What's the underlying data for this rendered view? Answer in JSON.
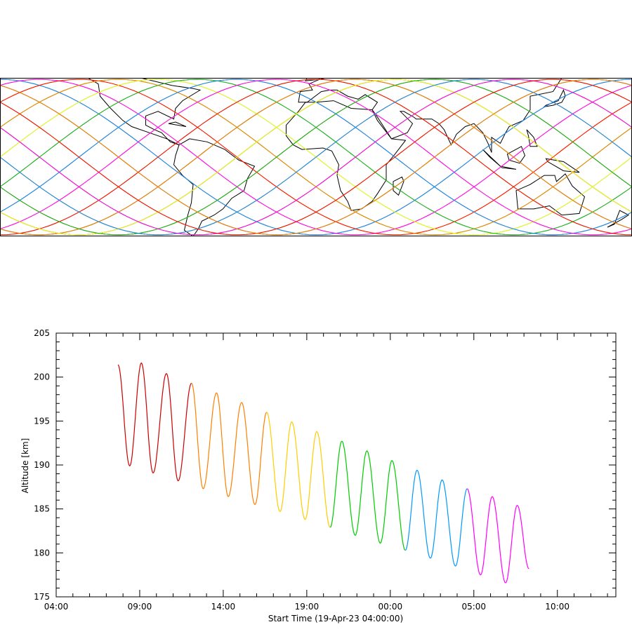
{
  "map": {
    "lat_extent": [
      -52,
      52
    ],
    "lon_extent": [
      -180,
      180
    ],
    "track_colors": [
      "#ff0000",
      "#ff7f00",
      "#ffff00",
      "#00cc00",
      "#0099ff",
      "#ff00ff"
    ]
  },
  "chart_data": {
    "type": "line",
    "xlabel": "Start Time (19-Apr-23 04:00:00)",
    "ylabel": "Altitude [km]",
    "x_unit": "hours since 19-Apr-23 04:00:00",
    "xlim": [
      0,
      33.5
    ],
    "ylim": [
      175,
      205
    ],
    "x_ticks": [
      {
        "value": 0,
        "label": "04:00"
      },
      {
        "value": 5,
        "label": "09:00"
      },
      {
        "value": 10,
        "label": "14:00"
      },
      {
        "value": 15,
        "label": "19:00"
      },
      {
        "value": 20,
        "label": "00:00"
      },
      {
        "value": 25,
        "label": "05:00"
      },
      {
        "value": 30,
        "label": "10:00"
      }
    ],
    "y_ticks": [
      175,
      180,
      185,
      190,
      195,
      200,
      205
    ],
    "grid": false,
    "series": [
      {
        "color": "#cc0000",
        "peaks": [
          [
            5.1,
            201.6
          ],
          [
            6.6,
            200.4
          ]
        ],
        "troughs": [
          [
            4.4,
            189.9
          ],
          [
            5.8,
            189.1
          ],
          [
            7.3,
            188.2
          ]
        ]
      },
      {
        "color": "#ff7f00",
        "peaks": [
          [
            8.1,
            199.3
          ],
          [
            9.6,
            198.2
          ],
          [
            11.1,
            197.1
          ]
        ],
        "troughs": [
          [
            8.8,
            187.3
          ],
          [
            10.3,
            186.4
          ],
          [
            11.9,
            185.5
          ]
        ]
      },
      {
        "color": "#ffcc00",
        "peaks": [
          [
            12.6,
            196.0
          ],
          [
            14.1,
            194.9
          ],
          [
            15.6,
            193.8
          ]
        ],
        "troughs": [
          [
            13.4,
            184.7
          ],
          [
            14.9,
            183.8
          ]
        ]
      },
      {
        "color": "#00cc00",
        "peaks": [
          [
            17.1,
            192.7
          ],
          [
            18.6,
            191.6
          ],
          [
            20.1,
            190.5
          ]
        ],
        "troughs": [
          [
            16.4,
            182.9
          ],
          [
            17.9,
            182.0
          ],
          [
            19.4,
            181.1
          ]
        ]
      },
      {
        "color": "#0099ff",
        "peaks": [
          [
            21.6,
            189.4
          ],
          [
            23.1,
            188.3
          ]
        ],
        "troughs": [
          [
            20.9,
            180.3
          ],
          [
            22.4,
            179.4
          ],
          [
            23.9,
            178.5
          ]
        ]
      },
      {
        "color": "#ff00ff",
        "peaks": [
          [
            24.6,
            187.3
          ],
          [
            26.1,
            186.4
          ],
          [
            27.6,
            185.4
          ]
        ],
        "troughs": [
          [
            25.4,
            177.5
          ],
          [
            26.9,
            176.6
          ]
        ]
      }
    ],
    "start": [
      3.7,
      201.4
    ],
    "end": [
      28.3,
      178.2
    ]
  }
}
